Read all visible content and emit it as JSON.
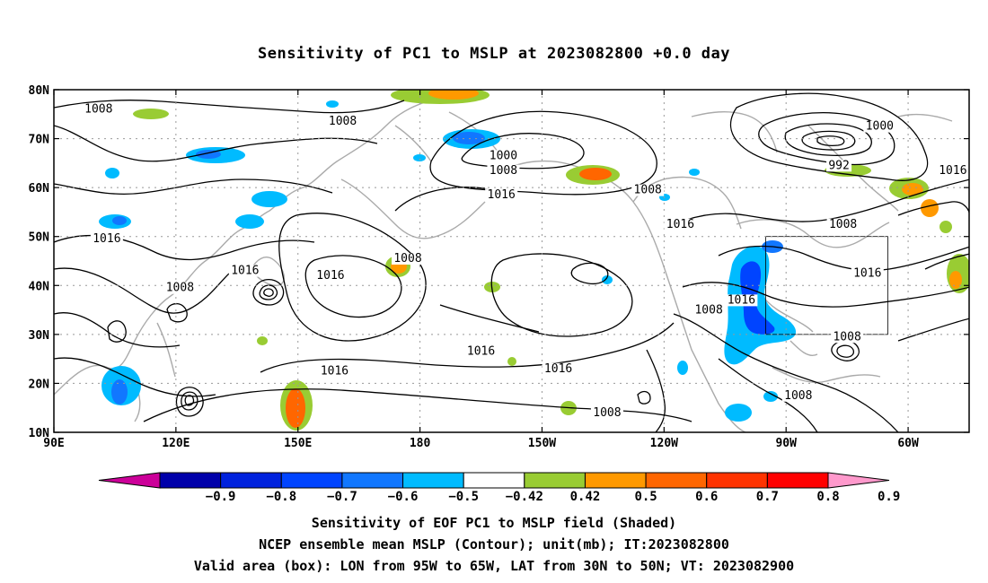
{
  "title": "Sensitivity of PC1 to MSLP at 2023082800 +0.0 day",
  "map": {
    "lon_labels": [
      "90E",
      "120E",
      "150E",
      "180",
      "150W",
      "120W",
      "90W",
      "60W"
    ],
    "lon_values": [
      90,
      120,
      150,
      180,
      210,
      240,
      270,
      300
    ],
    "lat_labels": [
      "10N",
      "20N",
      "30N",
      "40N",
      "50N",
      "60N",
      "70N",
      "80N"
    ],
    "lat_values": [
      10,
      20,
      30,
      40,
      50,
      60,
      70,
      80
    ],
    "lon_range": [
      90,
      315
    ],
    "lat_range": [
      10,
      80
    ],
    "valid_box": {
      "lon": [
        265,
        295
      ],
      "lat": [
        30,
        50
      ]
    },
    "contour_labels": [
      {
        "text": "1008",
        "lon": 101,
        "lat": 75.5
      },
      {
        "text": "1008",
        "lon": 161,
        "lat": 73
      },
      {
        "text": "1000",
        "lon": 200.5,
        "lat": 66
      },
      {
        "text": "1008",
        "lon": 200.5,
        "lat": 63
      },
      {
        "text": "1016",
        "lon": 200,
        "lat": 58
      },
      {
        "text": "1008",
        "lon": 236,
        "lat": 59
      },
      {
        "text": "1016",
        "lon": 244,
        "lat": 52
      },
      {
        "text": "1008",
        "lon": 284,
        "lat": 52
      },
      {
        "text": "1000",
        "lon": 293,
        "lat": 72
      },
      {
        "text": "992",
        "lon": 283,
        "lat": 64
      },
      {
        "text": "1016",
        "lon": 311,
        "lat": 63
      },
      {
        "text": "1016",
        "lon": 103,
        "lat": 49
      },
      {
        "text": "1016",
        "lon": 137,
        "lat": 42.5
      },
      {
        "text": "1016",
        "lon": 158,
        "lat": 41.5
      },
      {
        "text": "1008",
        "lon": 177,
        "lat": 45
      },
      {
        "text": "1008",
        "lon": 121,
        "lat": 39
      },
      {
        "text": "1016",
        "lon": 195,
        "lat": 26
      },
      {
        "text": "1016",
        "lon": 159,
        "lat": 22
      },
      {
        "text": "1016",
        "lon": 214,
        "lat": 22.5
      },
      {
        "text": "1016",
        "lon": 259,
        "lat": 36.5
      },
      {
        "text": "1008",
        "lon": 251,
        "lat": 34.5
      },
      {
        "text": "1016",
        "lon": 290,
        "lat": 42
      },
      {
        "text": "1008",
        "lon": 285,
        "lat": 29
      },
      {
        "text": "1008",
        "lon": 273,
        "lat": 17
      },
      {
        "text": "1008",
        "lon": 226,
        "lat": 13.5
      }
    ],
    "coast_color": "#aaaaaa"
  },
  "colorbar": {
    "labels": [
      "-0.9",
      "-0.8",
      "-0.7",
      "-0.6",
      "-0.5",
      "-0.42",
      "0.42",
      "0.5",
      "0.6",
      "0.7",
      "0.8",
      "0.9"
    ],
    "colors": [
      "#cc0099",
      "#0000aa",
      "#0022dd",
      "#0044ff",
      "#1177ff",
      "#00bbff",
      "#ffffff",
      "#99cc33",
      "#ff9900",
      "#ff6600",
      "#ff3300",
      "#ff0000",
      "#ff99cc"
    ]
  },
  "captions": {
    "line1": "Sensitivity of EOF PC1 to MSLP field (Shaded)",
    "line2": "NCEP ensemble mean MSLP (Contour); unit(mb); IT:2023082800",
    "line3": "Valid area (box): LON from 95W to 65W, LAT from 30N to 50N; VT: 2023082900"
  }
}
